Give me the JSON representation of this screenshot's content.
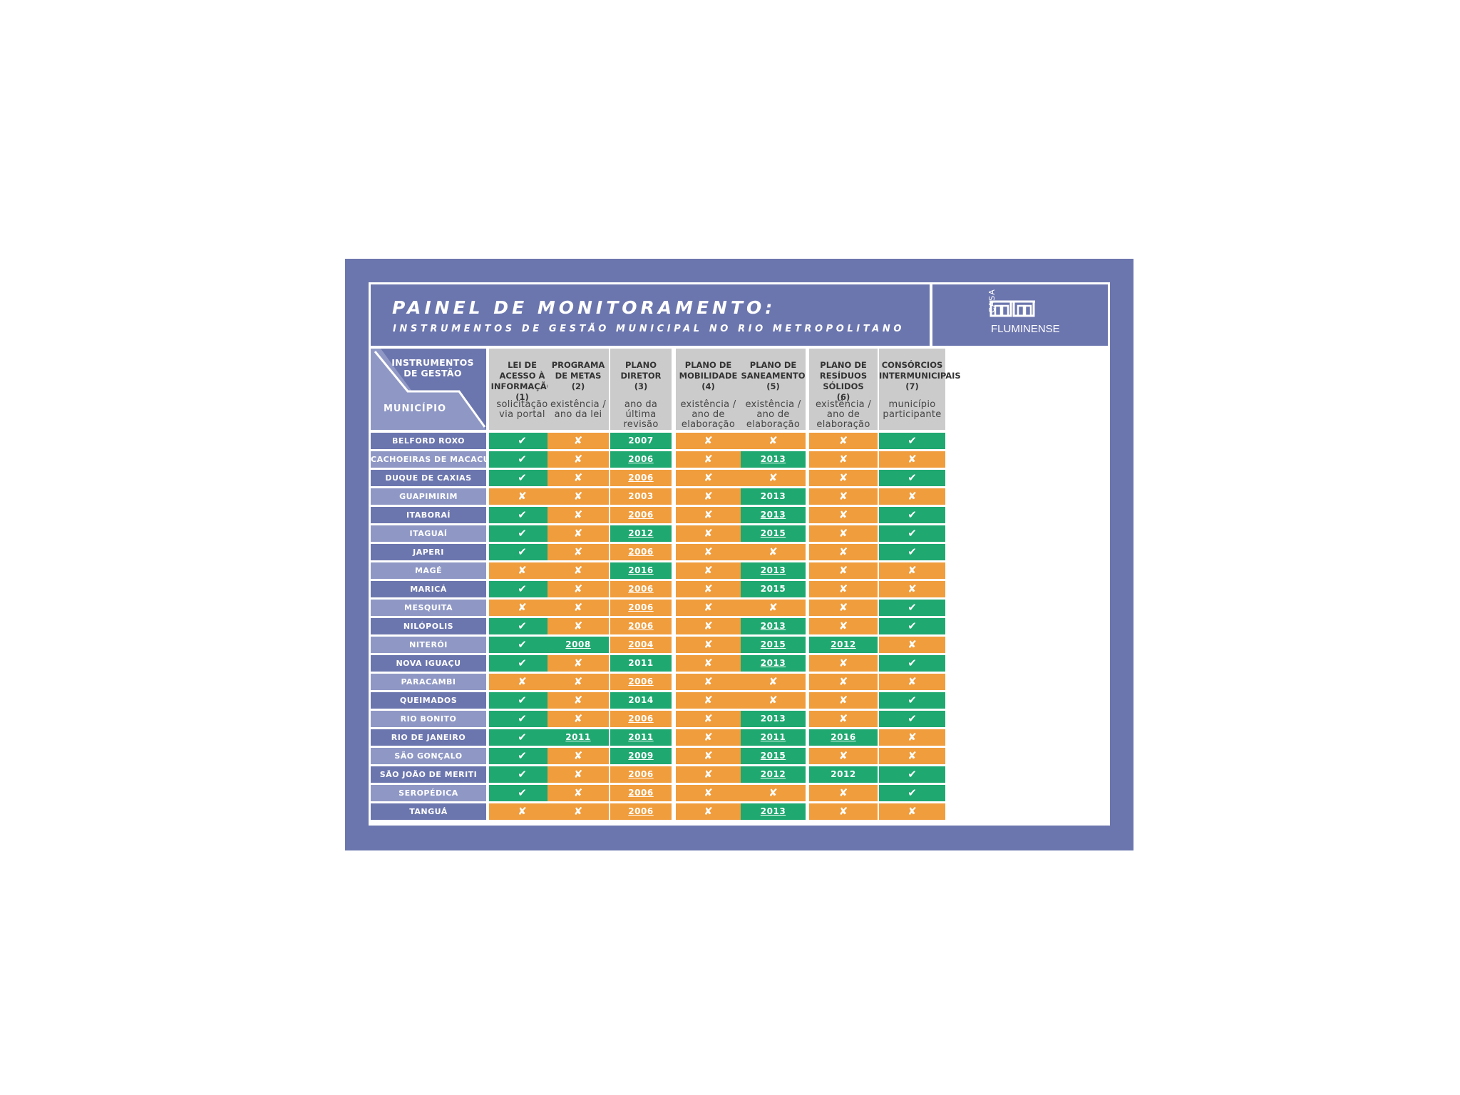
{
  "header": {
    "title": "PAINEL DE MONITORAMENTO:",
    "subtitle": "INSTRUMENTOS DE GESTÃO MUNICIPAL NO RIO METROPOLITANO",
    "logo_small": "CASA",
    "logo_name": "FLUMINENSE"
  },
  "corner": {
    "top_label": "INSTRUMENTOS DE GESTÃO",
    "bottom_label": "MUNICÍPIO"
  },
  "colors": {
    "panel": "#6c76ae",
    "row_dark": "#6c76ae",
    "row_light": "#8f98c5",
    "yes": "#1fa870",
    "no": "#f09d3d",
    "header_cell": "#cbcbcb"
  },
  "icons": {
    "yes": "checkmark-icon",
    "no": "x-icon"
  },
  "symbols": {
    "yes": "✔",
    "no": "✘"
  },
  "columns": [
    {
      "title": "LEI DE ACESSO À INFORMAÇÃO",
      "num": "(1)",
      "sub": "solicitação via portal"
    },
    {
      "title": "PROGRAMA DE METAS",
      "num": "(2)",
      "sub": "existência / ano da lei"
    },
    {
      "title": "PLANO DIRETOR",
      "num": "(3)",
      "sub": "ano da última revisão"
    },
    {
      "title": "PLANO DE MOBILIDADE",
      "num": "(4)",
      "sub": "existência / ano de elaboração"
    },
    {
      "title": "PLANO DE SANEAMENTO",
      "num": "(5)",
      "sub": "existência / ano de elaboração"
    },
    {
      "title": "PLANO DE RESÍDUOS SÓLIDOS",
      "num": "(6)",
      "sub": "existência / ano de elaboração"
    },
    {
      "title": "CONSÓRCIOS INTERMUNICIPAIS",
      "num": "(7)",
      "sub": "município participante"
    }
  ],
  "rows": [
    {
      "municipio": "BELFORD ROXO",
      "cells": [
        {
          "v": "yes"
        },
        {
          "v": "no"
        },
        {
          "v": "2007",
          "u": false
        },
        {
          "v": "no"
        },
        {
          "v": "no"
        },
        {
          "v": "no"
        },
        {
          "v": "yes"
        }
      ]
    },
    {
      "municipio": "CACHOEIRAS DE MACACU",
      "cells": [
        {
          "v": "yes"
        },
        {
          "v": "no"
        },
        {
          "v": "2006",
          "u": true
        },
        {
          "v": "no"
        },
        {
          "v": "2013",
          "u": true
        },
        {
          "v": "no"
        },
        {
          "v": "no"
        }
      ]
    },
    {
      "municipio": "DUQUE DE CAXIAS",
      "cells": [
        {
          "v": "yes"
        },
        {
          "v": "no"
        },
        {
          "v": "2006",
          "u": true,
          "c": "no"
        },
        {
          "v": "no"
        },
        {
          "v": "no"
        },
        {
          "v": "no"
        },
        {
          "v": "yes"
        }
      ]
    },
    {
      "municipio": "GUAPIMIRIM",
      "cells": [
        {
          "v": "no"
        },
        {
          "v": "no"
        },
        {
          "v": "2003",
          "u": false,
          "c": "no"
        },
        {
          "v": "no"
        },
        {
          "v": "2013",
          "u": false
        },
        {
          "v": "no"
        },
        {
          "v": "no"
        }
      ]
    },
    {
      "municipio": "ITABORAÍ",
      "cells": [
        {
          "v": "yes"
        },
        {
          "v": "no"
        },
        {
          "v": "2006",
          "u": true,
          "c": "no"
        },
        {
          "v": "no"
        },
        {
          "v": "2013",
          "u": true
        },
        {
          "v": "no"
        },
        {
          "v": "yes"
        }
      ]
    },
    {
      "municipio": "ITAGUAÍ",
      "cells": [
        {
          "v": "yes"
        },
        {
          "v": "no"
        },
        {
          "v": "2012",
          "u": true
        },
        {
          "v": "no"
        },
        {
          "v": "2015",
          "u": true
        },
        {
          "v": "no"
        },
        {
          "v": "yes"
        }
      ]
    },
    {
      "municipio": "JAPERI",
      "cells": [
        {
          "v": "yes"
        },
        {
          "v": "no"
        },
        {
          "v": "2006",
          "u": true,
          "c": "no"
        },
        {
          "v": "no"
        },
        {
          "v": "no"
        },
        {
          "v": "no"
        },
        {
          "v": "yes"
        }
      ]
    },
    {
      "municipio": "MAGÉ",
      "cells": [
        {
          "v": "no"
        },
        {
          "v": "no"
        },
        {
          "v": "2016",
          "u": true
        },
        {
          "v": "no"
        },
        {
          "v": "2013",
          "u": true
        },
        {
          "v": "no"
        },
        {
          "v": "no"
        }
      ]
    },
    {
      "municipio": "MARICÁ",
      "cells": [
        {
          "v": "yes"
        },
        {
          "v": "no"
        },
        {
          "v": "2006",
          "u": true,
          "c": "no"
        },
        {
          "v": "no"
        },
        {
          "v": "2015",
          "u": false
        },
        {
          "v": "no"
        },
        {
          "v": "no"
        }
      ]
    },
    {
      "municipio": "MESQUITA",
      "cells": [
        {
          "v": "no"
        },
        {
          "v": "no"
        },
        {
          "v": "2006",
          "u": true,
          "c": "no"
        },
        {
          "v": "no"
        },
        {
          "v": "no"
        },
        {
          "v": "no"
        },
        {
          "v": "yes"
        }
      ]
    },
    {
      "municipio": "NILÓPOLIS",
      "cells": [
        {
          "v": "yes"
        },
        {
          "v": "no"
        },
        {
          "v": "2006",
          "u": true,
          "c": "no"
        },
        {
          "v": "no"
        },
        {
          "v": "2013",
          "u": true
        },
        {
          "v": "no"
        },
        {
          "v": "yes"
        }
      ]
    },
    {
      "municipio": "NITERÓI",
      "cells": [
        {
          "v": "yes"
        },
        {
          "v": "2008",
          "u": true
        },
        {
          "v": "2004",
          "u": true,
          "c": "no"
        },
        {
          "v": "no"
        },
        {
          "v": "2015",
          "u": true
        },
        {
          "v": "2012",
          "u": true
        },
        {
          "v": "no"
        }
      ]
    },
    {
      "municipio": "NOVA IGUAÇU",
      "cells": [
        {
          "v": "yes"
        },
        {
          "v": "no"
        },
        {
          "v": "2011",
          "u": false
        },
        {
          "v": "no"
        },
        {
          "v": "2013",
          "u": true
        },
        {
          "v": "no"
        },
        {
          "v": "yes"
        }
      ]
    },
    {
      "municipio": "PARACAMBI",
      "cells": [
        {
          "v": "no"
        },
        {
          "v": "no"
        },
        {
          "v": "2006",
          "u": true,
          "c": "no"
        },
        {
          "v": "no"
        },
        {
          "v": "no"
        },
        {
          "v": "no"
        },
        {
          "v": "no"
        }
      ]
    },
    {
      "municipio": "QUEIMADOS",
      "cells": [
        {
          "v": "yes"
        },
        {
          "v": "no"
        },
        {
          "v": "2014",
          "u": false
        },
        {
          "v": "no"
        },
        {
          "v": "no"
        },
        {
          "v": "no"
        },
        {
          "v": "yes"
        }
      ]
    },
    {
      "municipio": "RIO BONITO",
      "cells": [
        {
          "v": "yes"
        },
        {
          "v": "no"
        },
        {
          "v": "2006",
          "u": true,
          "c": "no"
        },
        {
          "v": "no"
        },
        {
          "v": "2013",
          "u": false
        },
        {
          "v": "no"
        },
        {
          "v": "yes"
        }
      ]
    },
    {
      "municipio": "RIO DE JANEIRO",
      "cells": [
        {
          "v": "yes"
        },
        {
          "v": "2011",
          "u": true
        },
        {
          "v": "2011",
          "u": true
        },
        {
          "v": "no"
        },
        {
          "v": "2011",
          "u": true
        },
        {
          "v": "2016",
          "u": true
        },
        {
          "v": "no"
        }
      ]
    },
    {
      "municipio": "SÃO GONÇALO",
      "cells": [
        {
          "v": "yes"
        },
        {
          "v": "no"
        },
        {
          "v": "2009",
          "u": true
        },
        {
          "v": "no"
        },
        {
          "v": "2015",
          "u": true
        },
        {
          "v": "no"
        },
        {
          "v": "no"
        }
      ]
    },
    {
      "municipio": "SÃO JOÃO DE MERITI",
      "cells": [
        {
          "v": "yes"
        },
        {
          "v": "no"
        },
        {
          "v": "2006",
          "u": true,
          "c": "no"
        },
        {
          "v": "no"
        },
        {
          "v": "2012",
          "u": true
        },
        {
          "v": "2012",
          "u": false
        },
        {
          "v": "yes"
        }
      ]
    },
    {
      "municipio": "SEROPÉDICA",
      "cells": [
        {
          "v": "yes"
        },
        {
          "v": "no"
        },
        {
          "v": "2006",
          "u": true,
          "c": "no"
        },
        {
          "v": "no"
        },
        {
          "v": "no"
        },
        {
          "v": "no"
        },
        {
          "v": "yes"
        }
      ]
    },
    {
      "municipio": "TANGUÁ",
      "cells": [
        {
          "v": "no"
        },
        {
          "v": "no"
        },
        {
          "v": "2006",
          "u": true,
          "c": "no"
        },
        {
          "v": "no"
        },
        {
          "v": "2013",
          "u": true
        },
        {
          "v": "no"
        },
        {
          "v": "no"
        }
      ]
    }
  ]
}
